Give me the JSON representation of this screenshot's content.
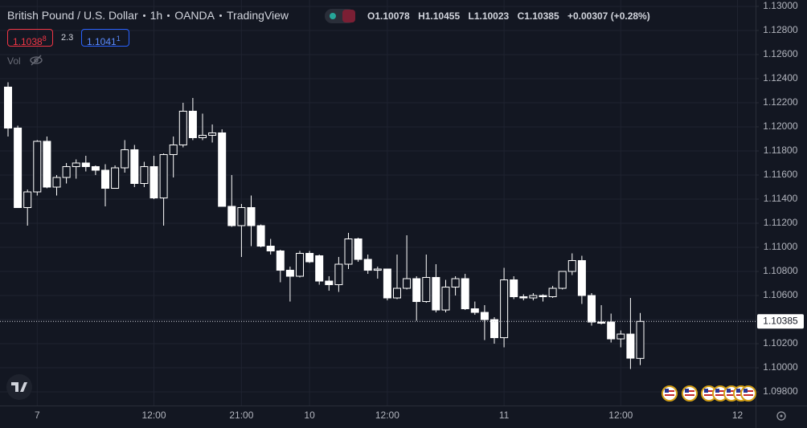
{
  "chart_data": {
    "type": "candlestick",
    "title": "British Pound / U.S. Dollar",
    "interval": "1h",
    "exchange": "OANDA",
    "platform": "TradingView",
    "ohlc_labels": [
      "O",
      "H",
      "L",
      "C"
    ],
    "change": "+0.00307 (+0.28%)",
    "sell_price": "1.1038",
    "sell_pip": "8",
    "spread": "2.3",
    "buy_price": "1.1041",
    "buy_pip": "1",
    "volume_label": "Vol",
    "up_color": "#131722",
    "down_color": "#ffffff",
    "wick_color": "#ffffff",
    "grid": true,
    "last_price_line": true,
    "ylim": [
      1.09687,
      1.13053
    ],
    "yticks": [
      {
        "value": 1.13,
        "label": "1.13000"
      },
      {
        "value": 1.128,
        "label": "1.12800"
      },
      {
        "value": 1.126,
        "label": "1.12600"
      },
      {
        "value": 1.124,
        "label": "1.12400"
      },
      {
        "value": 1.122,
        "label": "1.12200"
      },
      {
        "value": 1.12,
        "label": "1.12000"
      },
      {
        "value": 1.118,
        "label": "1.11800"
      },
      {
        "value": 1.116,
        "label": "1.11600"
      },
      {
        "value": 1.114,
        "label": "1.11400"
      },
      {
        "value": 1.112,
        "label": "1.11200"
      },
      {
        "value": 1.11,
        "label": "1.11000"
      },
      {
        "value": 1.108,
        "label": "1.10800"
      },
      {
        "value": 1.106,
        "label": "1.10600"
      },
      {
        "value": 1.104,
        "label": "1.10400"
      },
      {
        "value": 1.102,
        "label": "1.10200"
      },
      {
        "value": 1.1,
        "label": "1.10000"
      },
      {
        "value": 1.098,
        "label": "1.09800"
      }
    ],
    "categories": [
      null,
      null,
      null,
      "7",
      null,
      null,
      null,
      null,
      null,
      null,
      null,
      null,
      null,
      null,
      null,
      "12:00",
      null,
      null,
      null,
      null,
      null,
      null,
      null,
      null,
      "21:00",
      null,
      null,
      null,
      null,
      null,
      null,
      "10",
      null,
      null,
      null,
      null,
      null,
      null,
      null,
      "12:00",
      null,
      null,
      null,
      null,
      null,
      null,
      null,
      null,
      null,
      null,
      null,
      "11",
      null,
      null,
      null,
      null,
      null,
      null,
      null,
      null,
      null,
      null,
      null,
      "12:00",
      null,
      null,
      null,
      null,
      null,
      null,
      null,
      null,
      null,
      null,
      null,
      "12"
    ],
    "open": [
      1.1233,
      1.1199,
      1.1133,
      1.1146,
      1.1188,
      1.115,
      1.1158,
      1.1167,
      1.117,
      1.1167,
      1.1164,
      1.1149,
      1.1166,
      1.1181,
      1.1153,
      1.1167,
      1.1141,
      1.1177,
      1.1185,
      1.1213,
      1.1191,
      1.1193,
      1.1195,
      1.1134,
      1.1118,
      1.1133,
      1.1118,
      1.1101,
      1.1097,
      1.1081,
      1.1076,
      1.1095,
      1.1093,
      1.1072,
      1.1069,
      1.1086,
      1.1107,
      1.109,
      1.1081,
      1.1082,
      1.1058,
      1.1066,
      1.1074,
      1.1055,
      1.1075,
      1.1048,
      1.1067,
      1.1074,
      1.1049,
      1.1046,
      1.104,
      1.1025,
      1.1073,
      1.1059,
      1.1058,
      1.106,
      1.1059,
      1.1066,
      1.108,
      1.1089,
      1.106,
      1.1038,
      1.1038,
      1.1024,
      1.1028,
      1.10078,
      null,
      null,
      null,
      null,
      null,
      null,
      null,
      null,
      null,
      null
    ],
    "high": [
      1.1237,
      1.1201,
      1.1148,
      1.1189,
      1.1192,
      1.116,
      1.117,
      1.1173,
      1.1176,
      1.1168,
      1.1169,
      1.1168,
      1.1189,
      1.1185,
      1.1171,
      1.1176,
      1.1178,
      1.1192,
      1.122,
      1.1224,
      1.1211,
      1.1202,
      1.1198,
      1.116,
      1.1136,
      1.1143,
      1.1119,
      1.1107,
      1.1098,
      1.1084,
      1.1097,
      1.1097,
      1.1094,
      1.1076,
      1.1092,
      1.1112,
      1.1108,
      1.1094,
      1.1084,
      1.1082,
      1.1094,
      1.111,
      1.1076,
      1.1094,
      1.1086,
      1.1073,
      1.1076,
      1.1078,
      1.1055,
      1.1052,
      1.1042,
      1.1083,
      1.1076,
      1.1061,
      1.1062,
      1.1061,
      1.1068,
      1.108,
      1.1095,
      1.1093,
      1.1062,
      1.1052,
      1.1045,
      1.1031,
      1.1058,
      1.10455,
      null,
      null,
      null,
      null,
      null,
      null,
      null,
      null,
      null,
      null
    ],
    "low": [
      1.1192,
      1.1133,
      1.1118,
      1.1143,
      1.1149,
      1.1143,
      1.1153,
      1.1157,
      1.1163,
      1.116,
      1.1134,
      1.1149,
      1.1162,
      1.115,
      1.115,
      1.114,
      1.1118,
      1.1158,
      1.1183,
      1.1189,
      1.1189,
      1.1187,
      1.1134,
      1.1117,
      1.1092,
      1.1101,
      1.11,
      1.1094,
      1.1071,
      1.1055,
      1.1075,
      1.1087,
      1.1069,
      1.1064,
      1.1063,
      1.1082,
      1.1088,
      1.1078,
      1.1074,
      1.1056,
      1.1057,
      1.1065,
      1.1039,
      1.1054,
      1.1046,
      1.1046,
      1.106,
      1.1048,
      1.1044,
      1.1023,
      1.102,
      1.1017,
      1.1057,
      1.1056,
      1.1056,
      1.1055,
      1.1058,
      1.1065,
      1.1077,
      1.1053,
      1.1035,
      1.1036,
      1.1021,
      1.1017,
      1.0999,
      1.10023,
      null,
      null,
      null,
      null,
      null,
      null,
      null,
      null,
      null,
      null
    ],
    "close": [
      1.1199,
      1.1133,
      1.1146,
      1.1188,
      1.115,
      1.1158,
      1.1167,
      1.117,
      1.1167,
      1.1164,
      1.1149,
      1.1166,
      1.1181,
      1.1153,
      1.1167,
      1.1141,
      1.1177,
      1.1185,
      1.1213,
      1.1191,
      1.1193,
      1.1195,
      1.1134,
      1.1118,
      1.1133,
      1.1118,
      1.1101,
      1.1097,
      1.1081,
      1.1076,
      1.1095,
      1.1088,
      1.1072,
      1.1069,
      1.1086,
      1.1107,
      1.109,
      1.1081,
      1.1082,
      1.1058,
      1.1066,
      1.1074,
      1.1055,
      1.1075,
      1.1048,
      1.1067,
      1.1074,
      1.1049,
      1.1046,
      1.104,
      1.1025,
      1.1073,
      1.1059,
      1.1058,
      1.106,
      1.1059,
      1.1066,
      1.108,
      1.1089,
      1.106,
      1.1038,
      1.1037,
      1.1024,
      1.1028,
      1.1008,
      1.10385,
      null,
      null,
      null,
      null,
      null,
      null,
      null,
      null,
      null,
      null
    ]
  }
}
